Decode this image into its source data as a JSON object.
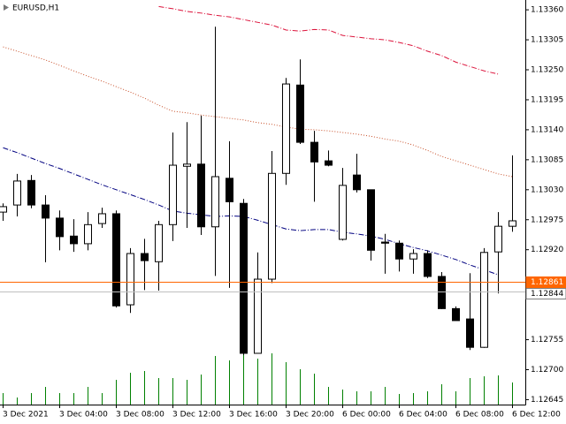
{
  "chart_data": {
    "type": "candlestick",
    "title": "EURUSD,H1",
    "categories": [
      "3 Dec 2021",
      null,
      null,
      null,
      "3 Dec 04:00",
      null,
      null,
      null,
      "3 Dec 08:00",
      null,
      null,
      null,
      "3 Dec 12:00",
      null,
      null,
      null,
      "3 Dec 16:00",
      null,
      null,
      null,
      "3 Dec 20:00",
      null,
      null,
      null,
      "6 Dec 00:00",
      null,
      null,
      null,
      "6 Dec 04:00",
      null,
      null,
      null,
      "6 Dec 08:00",
      null,
      null,
      null,
      "6 Dec 12:00"
    ],
    "open": [
      1.12989,
      1.13002,
      1.13047,
      1.13002,
      1.12978,
      1.12945,
      1.12931,
      1.12968,
      1.12986,
      1.12819,
      1.12913,
      1.12898,
      1.12966,
      1.13073,
      1.13077,
      1.12962,
      1.13051,
      1.13005,
      1.1273,
      1.12866,
      1.1306,
      1.13222,
      1.13117,
      1.13083,
      1.12939,
      1.13057,
      1.1303,
      1.12934,
      1.12932,
      1.12903,
      1.12913,
      1.12871,
      1.12812,
      1.12793,
      1.12741,
      1.12916,
      1.12963
    ],
    "high": [
      1.13005,
      1.13059,
      1.13057,
      1.1302,
      1.12992,
      1.12976,
      1.12989,
      1.12997,
      1.12992,
      1.12923,
      1.1294,
      1.12973,
      1.13135,
      1.13154,
      1.13166,
      1.13329,
      1.13119,
      1.13013,
      1.12915,
      1.13101,
      1.13235,
      1.13269,
      1.13138,
      1.13102,
      1.1307,
      1.13096,
      1.1303,
      1.12949,
      1.12937,
      1.12921,
      1.12919,
      1.12879,
      1.12816,
      1.12877,
      1.12923,
      1.12989,
      1.13093
    ],
    "low": [
      1.12973,
      1.12981,
      1.12996,
      1.12897,
      1.12919,
      1.12916,
      1.12919,
      1.1296,
      1.12814,
      1.12804,
      1.12846,
      1.12845,
      1.12936,
      1.1296,
      1.12947,
      1.12872,
      1.1285,
      1.12727,
      1.1273,
      1.12859,
      1.13039,
      1.13114,
      1.13008,
      1.13073,
      1.12937,
      1.13025,
      1.129,
      1.12876,
      1.1288,
      1.12876,
      1.12868,
      1.12811,
      1.1279,
      1.12736,
      1.1274,
      1.1284,
      1.12953
    ],
    "close": [
      1.12999,
      1.13046,
      1.13002,
      1.12978,
      1.12944,
      1.12931,
      1.12966,
      1.12986,
      1.12817,
      1.12913,
      1.129,
      1.12966,
      1.13075,
      1.13077,
      1.12962,
      1.13054,
      1.13008,
      1.1273,
      1.12866,
      1.1306,
      1.13224,
      1.13117,
      1.13081,
      1.13075,
      1.13038,
      1.1303,
      1.12919,
      1.12932,
      1.12903,
      1.12913,
      1.12871,
      1.12812,
      1.1279,
      1.12741,
      1.12915,
      1.12963,
      1.12973
    ],
    "up_color": "#ffffff",
    "down_color": "#000000",
    "volumes": [
      13,
      8,
      13,
      20,
      13,
      13,
      20,
      13,
      28,
      36,
      38,
      30,
      30,
      28,
      34,
      55,
      50,
      60,
      52,
      58,
      48,
      40,
      35,
      20,
      17,
      15,
      15,
      20,
      12,
      13,
      15,
      23,
      15,
      30,
      32,
      33,
      25
    ],
    "volume_color": "#008000",
    "lines": [
      {
        "color": "#dc143c",
        "dash": "dash-dot",
        "values": [
          null,
          null,
          null,
          null,
          null,
          null,
          null,
          null,
          null,
          null,
          null,
          1.13366,
          1.13362,
          1.13357,
          1.13354,
          1.1335,
          1.13347,
          1.13342,
          1.13337,
          1.13332,
          1.13323,
          1.13321,
          1.13324,
          1.13323,
          1.13313,
          1.1331,
          1.13307,
          1.13305,
          1.133,
          1.13294,
          1.13284,
          1.13276,
          1.13264,
          1.13256,
          1.13248,
          1.13242,
          null
        ]
      },
      {
        "color": "#c8502a",
        "dash": "dot",
        "values": [
          1.13292,
          1.13284,
          1.13276,
          1.13268,
          1.13258,
          1.13248,
          1.13238,
          1.13229,
          1.13219,
          1.13209,
          1.13198,
          1.13185,
          1.13174,
          1.13171,
          1.13167,
          1.13164,
          1.13161,
          1.13158,
          1.13153,
          1.1315,
          1.13145,
          1.13141,
          1.1314,
          1.13138,
          1.13135,
          1.13132,
          1.13128,
          1.13123,
          1.13119,
          1.13112,
          1.13102,
          1.13091,
          1.13083,
          1.13075,
          1.13067,
          1.13059,
          1.13054
        ]
      },
      {
        "color": "#000080",
        "dash": "dash-dot",
        "values": [
          1.13107,
          1.13098,
          1.13088,
          1.13078,
          1.13069,
          1.13059,
          1.13049,
          1.13039,
          1.1303,
          1.13021,
          1.13012,
          1.13002,
          1.12991,
          1.12987,
          1.12984,
          1.12981,
          1.12982,
          1.12981,
          1.12974,
          1.12966,
          1.12958,
          1.12955,
          1.12957,
          1.12957,
          1.12952,
          1.12949,
          1.12945,
          1.12939,
          1.12931,
          1.12924,
          1.12918,
          1.1291,
          1.12902,
          1.12892,
          1.12883,
          1.12874,
          null
        ]
      }
    ],
    "price_lines": [
      {
        "value": 1.12861,
        "color": "#ff6600"
      },
      {
        "value": 1.12844,
        "color": "#c0c0c0"
      }
    ],
    "ylim": [
      1.12636,
      1.13378
    ],
    "yticks": [
      {
        "value": 1.1336,
        "label": "1.13360"
      },
      1.13305,
      {
        "value": 1.1325,
        "label": "1.13250"
      },
      1.13195,
      {
        "value": 1.1314,
        "label": "1.13140"
      },
      1.13085,
      {
        "value": 1.1303,
        "label": "1.13030"
      },
      1.12975,
      {
        "value": 1.1292,
        "label": "1.12920"
      },
      1.12755,
      {
        "value": 1.127,
        "label": "1.12700"
      },
      1.12645
    ],
    "grid": false
  }
}
